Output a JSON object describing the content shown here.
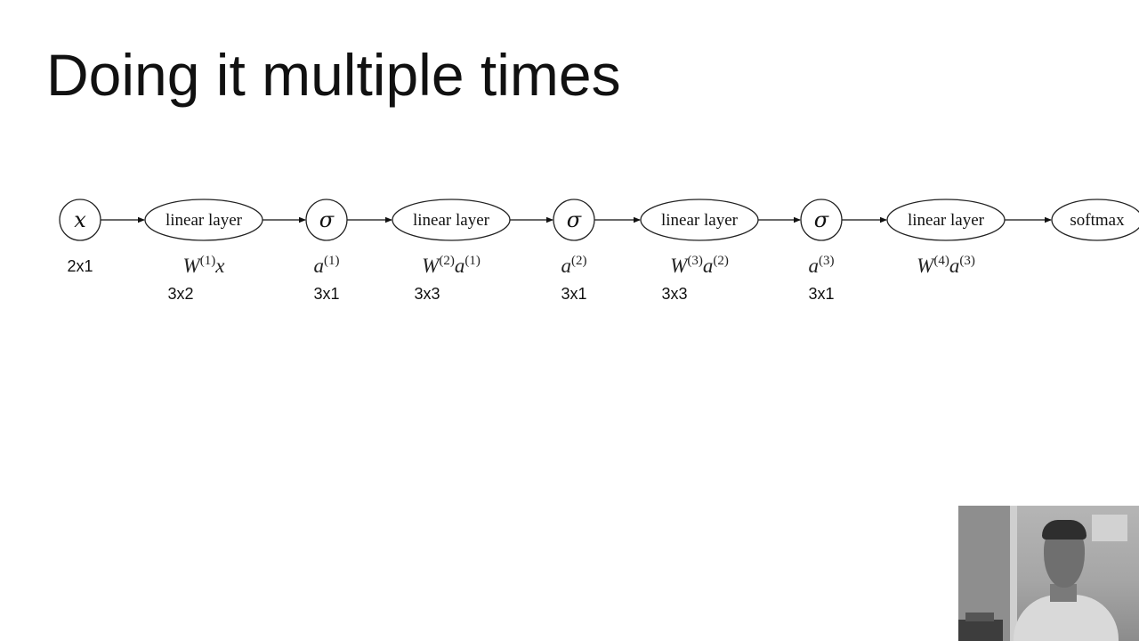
{
  "slide": {
    "title": "Doing it multiple times"
  },
  "diagram": {
    "nodes": [
      {
        "id": "x",
        "type": "circle",
        "label": "x",
        "math": true
      },
      {
        "id": "lin1",
        "type": "ellipse",
        "label": "linear layer"
      },
      {
        "id": "sig1",
        "type": "circle",
        "label": "σ",
        "math": true
      },
      {
        "id": "lin2",
        "type": "ellipse",
        "label": "linear layer"
      },
      {
        "id": "sig2",
        "type": "circle",
        "label": "σ",
        "math": true
      },
      {
        "id": "lin3",
        "type": "ellipse",
        "label": "linear layer"
      },
      {
        "id": "sig3",
        "type": "circle",
        "label": "σ",
        "math": true
      },
      {
        "id": "lin4",
        "type": "ellipse",
        "label": "linear layer"
      },
      {
        "id": "soft",
        "type": "ellipse",
        "label": "softmax"
      }
    ],
    "edges": [
      [
        "x",
        "lin1"
      ],
      [
        "lin1",
        "sig1"
      ],
      [
        "sig1",
        "lin2"
      ],
      [
        "lin2",
        "sig2"
      ],
      [
        "sig2",
        "lin3"
      ],
      [
        "lin3",
        "sig3"
      ],
      [
        "sig3",
        "lin4"
      ],
      [
        "lin4",
        "soft"
      ]
    ],
    "expressions": [
      {
        "under": "lin1",
        "parts": [
          {
            "t": "W"
          },
          {
            "t": "(1)",
            "sup": true
          },
          {
            "t": "x"
          }
        ]
      },
      {
        "under": "sig1",
        "parts": [
          {
            "t": "a"
          },
          {
            "t": "(1)",
            "sup": true
          }
        ]
      },
      {
        "under": "lin2",
        "parts": [
          {
            "t": "W"
          },
          {
            "t": "(2)",
            "sup": true
          },
          {
            "t": "a"
          },
          {
            "t": "(1)",
            "sup": true
          }
        ]
      },
      {
        "under": "sig2",
        "parts": [
          {
            "t": "a"
          },
          {
            "t": "(2)",
            "sup": true
          }
        ]
      },
      {
        "under": "lin3",
        "parts": [
          {
            "t": "W"
          },
          {
            "t": "(3)",
            "sup": true
          },
          {
            "t": "a"
          },
          {
            "t": "(2)",
            "sup": true
          }
        ]
      },
      {
        "under": "sig3",
        "parts": [
          {
            "t": "a"
          },
          {
            "t": "(3)",
            "sup": true
          }
        ]
      },
      {
        "under": "lin4",
        "parts": [
          {
            "t": "W"
          },
          {
            "t": "(4)",
            "sup": true
          },
          {
            "t": "a"
          },
          {
            "t": "(3)",
            "sup": true
          }
        ]
      }
    ],
    "dimensions": [
      {
        "under": "x",
        "text": "2x1"
      },
      {
        "under": "lin1",
        "text": "3x2"
      },
      {
        "under": "sig1",
        "text": "3x1"
      },
      {
        "under": "lin2",
        "text": "3x3"
      },
      {
        "under": "sig2",
        "text": "3x1"
      },
      {
        "under": "lin3",
        "text": "3x3"
      },
      {
        "under": "sig3",
        "text": "3x1"
      }
    ]
  },
  "webcam": {
    "icon": "presenter-webcam-feed"
  }
}
